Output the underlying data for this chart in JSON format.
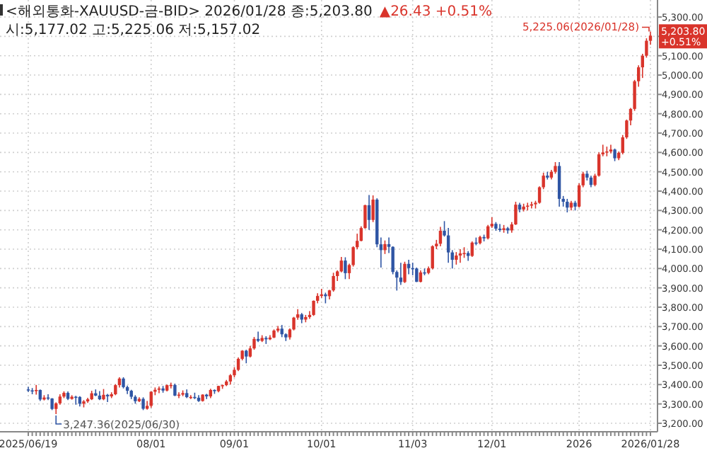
{
  "chart_data": {
    "type": "candlestick",
    "title": "<해외통화-XAUUSD-금-BID> 2026/01/28 종:5,203.80",
    "subtitle": "▲26.43 +0.51%",
    "annotations": [
      "시:5,177.02 고:5,225.06 저:5,157.02",
      {
        "text": "5,225.06(2026/01/28)",
        "x": "2026/01/28",
        "y": 5225.06
      },
      "3,247.36(2025/06/30)",
      "5,203.80 +0.51%"
    ],
    "categories": [
      "2025/06/19",
      null,
      null,
      null,
      null,
      null,
      null,
      null,
      null,
      null,
      null,
      null,
      null,
      null,
      null,
      null,
      null,
      null,
      null,
      null,
      null,
      null,
      null,
      null,
      null,
      null,
      null,
      null,
      null,
      null,
      null,
      "08/01",
      null,
      null,
      null,
      null,
      null,
      null,
      null,
      null,
      null,
      null,
      null,
      null,
      null,
      null,
      null,
      null,
      null,
      null,
      null,
      null,
      "09/01",
      null,
      null,
      null,
      null,
      null,
      null,
      null,
      null,
      null,
      null,
      null,
      null,
      null,
      null,
      null,
      null,
      null,
      null,
      null,
      null,
      null,
      "10/01",
      null,
      null,
      null,
      null,
      null,
      null,
      null,
      null,
      null,
      null,
      null,
      null,
      null,
      null,
      null,
      null,
      null,
      null,
      null,
      null,
      null,
      null,
      "11/03",
      null,
      null,
      null,
      null,
      null,
      null,
      null,
      null,
      null,
      null,
      null,
      null,
      null,
      null,
      null,
      null,
      null,
      null,
      null,
      "12/01",
      null,
      null,
      null,
      null,
      null,
      null,
      null,
      null,
      null,
      null,
      null,
      null,
      null,
      null,
      null,
      null,
      null,
      null,
      null,
      null,
      null,
      "2026",
      null,
      null,
      null,
      null,
      null,
      null,
      null,
      null,
      null,
      null,
      null,
      null,
      null,
      null,
      null,
      null,
      null,
      "2026/01/28"
    ],
    "ohlc": [
      [
        3375,
        3388,
        3362,
        3370
      ],
      [
        3370,
        3382,
        3350,
        3368
      ],
      [
        3368,
        3398,
        3348,
        3372
      ],
      [
        3372,
        3375,
        3315,
        3323
      ],
      [
        3323,
        3345,
        3318,
        3333
      ],
      [
        3333,
        3350,
        3320,
        3328
      ],
      [
        3328,
        3330,
        3268,
        3274
      ],
      [
        3274,
        3308,
        3247.36,
        3303
      ],
      [
        3303,
        3350,
        3296,
        3338
      ],
      [
        3338,
        3365,
        3330,
        3357
      ],
      [
        3357,
        3365,
        3320,
        3326
      ],
      [
        3326,
        3345,
        3322,
        3337
      ],
      [
        3337,
        3342,
        3296,
        3336
      ],
      [
        3336,
        3340,
        3287,
        3301
      ],
      [
        3301,
        3320,
        3282,
        3313
      ],
      [
        3313,
        3332,
        3305,
        3324
      ],
      [
        3324,
        3368,
        3320,
        3355
      ],
      [
        3355,
        3375,
        3340,
        3343
      ],
      [
        3343,
        3366,
        3320,
        3324
      ],
      [
        3324,
        3377,
        3319,
        3347
      ],
      [
        3347,
        3352,
        3310,
        3339
      ],
      [
        3339,
        3360,
        3330,
        3350
      ],
      [
        3350,
        3402,
        3345,
        3397
      ],
      [
        3397,
        3438,
        3385,
        3431
      ],
      [
        3431,
        3438,
        3380,
        3387
      ],
      [
        3387,
        3395,
        3351,
        3368
      ],
      [
        3368,
        3373,
        3325,
        3337
      ],
      [
        3337,
        3345,
        3301,
        3314
      ],
      [
        3314,
        3334,
        3310,
        3326
      ],
      [
        3326,
        3334,
        3268,
        3275
      ],
      [
        3275,
        3315,
        3270,
        3290
      ],
      [
        3290,
        3365,
        3280,
        3363
      ],
      [
        3363,
        3385,
        3345,
        3373
      ],
      [
        3373,
        3390,
        3355,
        3380
      ],
      [
        3380,
        3393,
        3358,
        3369
      ],
      [
        3369,
        3400,
        3365,
        3397
      ],
      [
        3397,
        3410,
        3380,
        3398
      ],
      [
        3398,
        3405,
        3340,
        3343
      ],
      [
        3343,
        3360,
        3330,
        3348
      ],
      [
        3348,
        3370,
        3340,
        3356
      ],
      [
        3356,
        3375,
        3330,
        3335
      ],
      [
        3335,
        3345,
        3325,
        3336
      ],
      [
        3336,
        3358,
        3325,
        3332
      ],
      [
        3332,
        3345,
        3311,
        3315
      ],
      [
        3315,
        3350,
        3312,
        3348
      ],
      [
        3348,
        3352,
        3325,
        3339
      ],
      [
        3339,
        3378,
        3330,
        3372
      ],
      [
        3372,
        3375,
        3352,
        3366
      ],
      [
        3366,
        3394,
        3360,
        3393
      ],
      [
        3393,
        3400,
        3378,
        3397
      ],
      [
        3397,
        3424,
        3392,
        3416
      ],
      [
        3416,
        3454,
        3400,
        3448
      ],
      [
        3448,
        3490,
        3437,
        3476
      ],
      [
        3476,
        3540,
        3470,
        3533
      ],
      [
        3533,
        3578,
        3525,
        3575
      ],
      [
        3575,
        3580,
        3510,
        3545
      ],
      [
        3545,
        3600,
        3540,
        3587
      ],
      [
        3587,
        3646,
        3580,
        3636
      ],
      [
        3636,
        3674,
        3620,
        3626
      ],
      [
        3626,
        3655,
        3620,
        3641
      ],
      [
        3641,
        3650,
        3610,
        3634
      ],
      [
        3634,
        3655,
        3630,
        3643
      ],
      [
        3643,
        3685,
        3640,
        3679
      ],
      [
        3679,
        3703,
        3670,
        3689
      ],
      [
        3689,
        3708,
        3645,
        3660
      ],
      [
        3660,
        3665,
        3625,
        3644
      ],
      [
        3644,
        3690,
        3633,
        3685
      ],
      [
        3685,
        3750,
        3680,
        3746
      ],
      [
        3746,
        3790,
        3735,
        3763
      ],
      [
        3763,
        3770,
        3717,
        3736
      ],
      [
        3736,
        3760,
        3722,
        3749
      ],
      [
        3749,
        3780,
        3740,
        3760
      ],
      [
        3760,
        3835,
        3755,
        3833
      ],
      [
        3833,
        3872,
        3820,
        3858
      ],
      [
        3858,
        3895,
        3848,
        3866
      ],
      [
        3866,
        3875,
        3820,
        3857
      ],
      [
        3857,
        3890,
        3840,
        3887
      ],
      [
        3887,
        3978,
        3880,
        3961
      ],
      [
        3961,
        3990,
        3935,
        3985
      ],
      [
        3985,
        4060,
        3980,
        4041
      ],
      [
        4041,
        4058,
        3945,
        3976
      ],
      [
        3976,
        4025,
        3945,
        4018
      ],
      [
        4018,
        4115,
        4010,
        4110
      ],
      [
        4110,
        4180,
        4100,
        4143
      ],
      [
        4143,
        4218,
        4140,
        4209
      ],
      [
        4209,
        4330,
        4205,
        4327
      ],
      [
        4327,
        4380,
        4200,
        4251
      ],
      [
        4251,
        4378,
        4240,
        4356
      ],
      [
        4356,
        4363,
        4110,
        4125
      ],
      [
        4125,
        4160,
        4005,
        4095
      ],
      [
        4095,
        4145,
        4075,
        4126
      ],
      [
        4126,
        4160,
        4080,
        4112
      ],
      [
        4112,
        4115,
        3970,
        3982
      ],
      [
        3982,
        3990,
        3886,
        3953
      ],
      [
        3953,
        4030,
        3915,
        3930
      ],
      [
        3930,
        4035,
        3925,
        4024
      ],
      [
        4024,
        4045,
        3970,
        4002
      ],
      [
        4002,
        4030,
        3965,
        4000
      ],
      [
        4000,
        4005,
        3930,
        3931
      ],
      [
        3931,
        3990,
        3928,
        3980
      ],
      [
        3980,
        4000,
        3965,
        3977
      ],
      [
        3977,
        4010,
        3970,
        4001
      ],
      [
        4001,
        4120,
        3995,
        4115
      ],
      [
        4115,
        4148,
        4100,
        4128
      ],
      [
        4128,
        4215,
        4115,
        4195
      ],
      [
        4195,
        4245,
        4165,
        4171
      ],
      [
        4171,
        4210,
        4030,
        4083
      ],
      [
        4083,
        4095,
        4000,
        4045
      ],
      [
        4045,
        4085,
        4020,
        4067
      ],
      [
        4067,
        4100,
        4030,
        4078
      ],
      [
        4078,
        4110,
        4055,
        4080
      ],
      [
        4080,
        4090,
        4040,
        4065
      ],
      [
        4065,
        4140,
        4060,
        4134
      ],
      [
        4134,
        4160,
        4120,
        4131
      ],
      [
        4131,
        4170,
        4125,
        4163
      ],
      [
        4163,
        4175,
        4140,
        4156
      ],
      [
        4156,
        4225,
        4150,
        4218
      ],
      [
        4218,
        4265,
        4210,
        4231
      ],
      [
        4231,
        4240,
        4195,
        4206
      ],
      [
        4206,
        4230,
        4190,
        4199
      ],
      [
        4199,
        4225,
        4185,
        4208
      ],
      [
        4208,
        4215,
        4180,
        4197
      ],
      [
        4197,
        4240,
        4185,
        4228
      ],
      [
        4228,
        4345,
        4225,
        4330
      ],
      [
        4330,
        4340,
        4290,
        4305
      ],
      [
        4305,
        4335,
        4295,
        4320
      ],
      [
        4320,
        4340,
        4300,
        4325
      ],
      [
        4325,
        4345,
        4310,
        4332
      ],
      [
        4332,
        4350,
        4310,
        4340
      ],
      [
        4340,
        4425,
        4335,
        4420
      ],
      [
        4420,
        4495,
        4410,
        4480
      ],
      [
        4480,
        4500,
        4460,
        4470
      ],
      [
        4470,
        4510,
        4460,
        4500
      ],
      [
        4500,
        4550,
        4490,
        4530
      ],
      [
        4530,
        4550,
        4320,
        4360
      ],
      [
        4360,
        4375,
        4320,
        4345
      ],
      [
        4345,
        4360,
        4290,
        4315
      ],
      [
        4315,
        4350,
        4300,
        4340
      ],
      [
        4340,
        4350,
        4300,
        4320
      ],
      [
        4320,
        4440,
        4315,
        4430
      ],
      [
        4430,
        4500,
        4420,
        4490
      ],
      [
        4490,
        4505,
        4455,
        4470
      ],
      [
        4470,
        4480,
        4420,
        4432
      ],
      [
        4432,
        4490,
        4425,
        4480
      ],
      [
        4480,
        4600,
        4475,
        4590
      ],
      [
        4590,
        4640,
        4580,
        4600
      ],
      [
        4600,
        4630,
        4580,
        4605
      ],
      [
        4605,
        4640,
        4595,
        4615
      ],
      [
        4615,
        4620,
        4555,
        4570
      ],
      [
        4570,
        4605,
        4560,
        4598
      ],
      [
        4598,
        4690,
        4590,
        4678
      ],
      [
        4678,
        4770,
        4670,
        4765
      ],
      [
        4765,
        4830,
        4740,
        4825
      ],
      [
        4825,
        4975,
        4815,
        4968
      ],
      [
        4968,
        5050,
        4940,
        5040
      ],
      [
        5040,
        5110,
        4985,
        5100
      ],
      [
        5100,
        5190,
        5090,
        5177.37
      ],
      [
        5177.02,
        5225.06,
        5157.02,
        5203.8
      ]
    ],
    "ylim": [
      3156,
      5388
    ],
    "yticks": [
      {
        "value": 3200,
        "label": "3,200.00"
      },
      {
        "value": 3300,
        "label": "3,300.00"
      },
      {
        "value": 3400,
        "label": "3,400.00"
      },
      {
        "value": 3500,
        "label": "3,500.00"
      },
      {
        "value": 3600,
        "label": "3,600.00"
      },
      {
        "value": 3700,
        "label": "3,700.00"
      },
      {
        "value": 3800,
        "label": "3,800.00"
      },
      {
        "value": 3900,
        "label": "3,900.00"
      },
      {
        "value": 4000,
        "label": "4,000.00"
      },
      {
        "value": 4100,
        "label": "4,100.00"
      },
      {
        "value": 4200,
        "label": "4,200.00"
      },
      {
        "value": 4300,
        "label": "4,300.00"
      },
      {
        "value": 4400,
        "label": "4,400.00"
      },
      {
        "value": 4500,
        "label": "4,500.00"
      },
      {
        "value": 4600,
        "label": "4,600.00"
      },
      {
        "value": 4700,
        "label": "4,700.00"
      },
      {
        "value": 4800,
        "label": "4,800.00"
      },
      {
        "value": 4900,
        "label": "4,900.00"
      },
      {
        "value": 5000,
        "label": "5,000.00"
      },
      {
        "value": 5100,
        "label": "5,100.00"
      },
      {
        "value": 5200,
        "label": null
      },
      {
        "value": 5300,
        "label": "5,300.00"
      }
    ],
    "grid": true
  }
}
